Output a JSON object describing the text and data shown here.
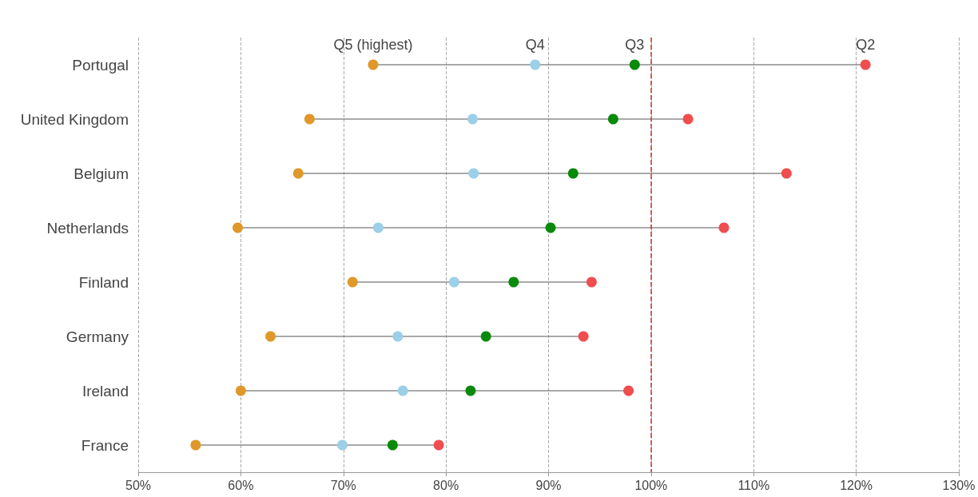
{
  "chart_data": {
    "type": "scatter",
    "orientation": "horizontal",
    "categories": [
      "Portugal",
      "United Kingdom",
      "Belgium",
      "Netherlands",
      "Finland",
      "Germany",
      "Ireland",
      "France"
    ],
    "series": [
      {
        "name": "Q5 (highest)",
        "color": "#e0982a",
        "values": [
          72.9,
          66.7,
          65.6,
          59.7,
          70.9,
          62.9,
          60.0,
          55.6
        ]
      },
      {
        "name": "Q4",
        "color": "#9ccfe8",
        "values": [
          88.7,
          82.6,
          82.7,
          73.4,
          80.8,
          75.3,
          75.8,
          69.9
        ]
      },
      {
        "name": "Q3",
        "color": "#0a8a0a",
        "values": [
          98.4,
          96.3,
          92.4,
          90.2,
          86.6,
          83.9,
          82.4,
          74.8
        ]
      },
      {
        "name": "Q2",
        "color": "#f04e4e",
        "values": [
          120.9,
          103.6,
          113.2,
          107.1,
          94.2,
          93.4,
          97.8,
          79.3
        ]
      }
    ],
    "xlim": [
      50,
      130
    ],
    "xticks": [
      {
        "value": 50,
        "label": "50%"
      },
      {
        "value": 60,
        "label": "60%"
      },
      {
        "value": 70,
        "label": "70%"
      },
      {
        "value": 80,
        "label": "80%"
      },
      {
        "value": 90,
        "label": "90%"
      },
      {
        "value": 100,
        "label": "100%"
      },
      {
        "value": 110,
        "label": "110%"
      },
      {
        "value": 120,
        "label": "120%"
      },
      {
        "value": 130,
        "label": "130%"
      }
    ],
    "ref_lines": [
      {
        "axis": "x",
        "value": 100,
        "label": null,
        "color": "#c0392b",
        "line_style": "dashed"
      }
    ],
    "grid": "x",
    "legend": false,
    "marker": "circle"
  }
}
